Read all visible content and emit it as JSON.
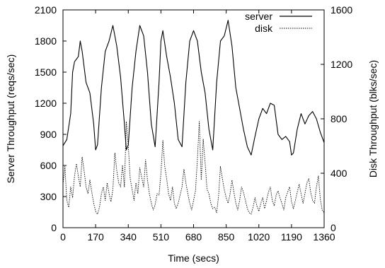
{
  "chart_data": {
    "type": "line",
    "xlabel": "Time (secs)",
    "ylabel": "Server Throughput (reqs/sec)",
    "y2label": "Disk Throughput (blks/sec)",
    "xlim": [
      0,
      1360
    ],
    "ylim": [
      0,
      2100
    ],
    "y2lim": [
      0,
      1600
    ],
    "xticks": [
      0,
      170,
      340,
      510,
      680,
      850,
      1020,
      1190,
      1360
    ],
    "yticks": [
      0,
      300,
      600,
      900,
      1200,
      1500,
      1800,
      2100
    ],
    "y2ticks": [
      0,
      400,
      800,
      1200,
      1600
    ],
    "legend_position": "top-right",
    "grid": false,
    "series": [
      {
        "name": "server",
        "axis": "left",
        "style": "solid",
        "x": [
          0,
          20,
          40,
          50,
          60,
          80,
          90,
          100,
          120,
          140,
          160,
          170,
          180,
          200,
          220,
          240,
          260,
          270,
          280,
          300,
          320,
          330,
          340,
          360,
          380,
          400,
          420,
          440,
          460,
          480,
          500,
          510,
          520,
          540,
          560,
          580,
          600,
          620,
          640,
          660,
          680,
          700,
          720,
          740,
          760,
          780,
          800,
          820,
          840,
          860,
          880,
          900,
          920,
          940,
          960,
          980,
          1000,
          1020,
          1040,
          1060,
          1080,
          1100,
          1120,
          1140,
          1160,
          1180,
          1190,
          1200,
          1220,
          1240,
          1260,
          1280,
          1300,
          1320,
          1340,
          1360
        ],
        "values": [
          790,
          850,
          1100,
          1500,
          1600,
          1650,
          1800,
          1700,
          1400,
          1300,
          1000,
          750,
          800,
          1350,
          1700,
          1800,
          1950,
          1850,
          1750,
          1450,
          1000,
          750,
          800,
          1350,
          1700,
          1950,
          1850,
          1500,
          1000,
          780,
          1400,
          1800,
          1900,
          1650,
          1450,
          1200,
          850,
          780,
          1400,
          1800,
          1900,
          1800,
          1500,
          1300,
          950,
          750,
          1400,
          1800,
          1850,
          2000,
          1750,
          1350,
          1150,
          950,
          780,
          700,
          880,
          1050,
          1150,
          1100,
          1200,
          1180,
          900,
          850,
          880,
          830,
          700,
          720,
          950,
          1100,
          1000,
          1080,
          1120,
          1050,
          920,
          820
        ]
      },
      {
        "name": "disk",
        "axis": "right",
        "style": "dotted",
        "x": [
          0,
          10,
          20,
          30,
          40,
          50,
          60,
          70,
          80,
          90,
          100,
          110,
          120,
          130,
          140,
          150,
          160,
          170,
          180,
          190,
          200,
          210,
          220,
          230,
          240,
          250,
          260,
          270,
          280,
          290,
          300,
          310,
          320,
          330,
          340,
          350,
          360,
          370,
          380,
          390,
          400,
          410,
          420,
          430,
          440,
          450,
          460,
          470,
          480,
          490,
          500,
          510,
          520,
          530,
          540,
          550,
          560,
          570,
          580,
          590,
          600,
          610,
          620,
          630,
          640,
          650,
          660,
          670,
          680,
          690,
          700,
          710,
          720,
          730,
          740,
          750,
          760,
          770,
          780,
          790,
          800,
          810,
          820,
          830,
          840,
          850,
          860,
          870,
          880,
          890,
          900,
          910,
          920,
          930,
          940,
          950,
          960,
          970,
          980,
          990,
          1000,
          1010,
          1020,
          1030,
          1040,
          1050,
          1060,
          1070,
          1080,
          1090,
          1100,
          1110,
          1120,
          1130,
          1140,
          1150,
          1160,
          1170,
          1180,
          1190,
          1200,
          1210,
          1220,
          1230,
          1240,
          1250,
          1260,
          1270,
          1280,
          1290,
          1300,
          1310,
          1320,
          1330,
          1340,
          1350,
          1360
        ],
        "values": [
          320,
          450,
          200,
          150,
          300,
          220,
          380,
          470,
          380,
          300,
          520,
          420,
          300,
          250,
          350,
          260,
          180,
          120,
          100,
          150,
          250,
          300,
          200,
          330,
          250,
          190,
          280,
          550,
          420,
          330,
          300,
          460,
          300,
          780,
          600,
          360,
          280,
          200,
          330,
          250,
          440,
          370,
          300,
          500,
          350,
          250,
          180,
          130,
          170,
          250,
          240,
          400,
          640,
          450,
          360,
          250,
          200,
          300,
          180,
          140,
          180,
          240,
          300,
          430,
          330,
          250,
          180,
          130,
          200,
          270,
          500,
          780,
          350,
          650,
          480,
          280,
          250,
          180,
          140,
          150,
          110,
          230,
          450,
          360,
          280,
          220,
          180,
          250,
          350,
          260,
          180,
          130,
          200,
          300,
          260,
          200,
          140,
          110,
          100,
          150,
          220,
          160,
          120,
          180,
          220,
          140,
          200,
          260,
          300,
          200,
          160,
          240,
          270,
          220,
          180,
          130,
          220,
          260,
          300,
          190,
          140,
          200,
          260,
          320,
          250,
          180,
          250,
          330,
          360,
          260,
          200,
          180,
          300,
          380,
          210,
          130,
          110
        ]
      }
    ]
  }
}
